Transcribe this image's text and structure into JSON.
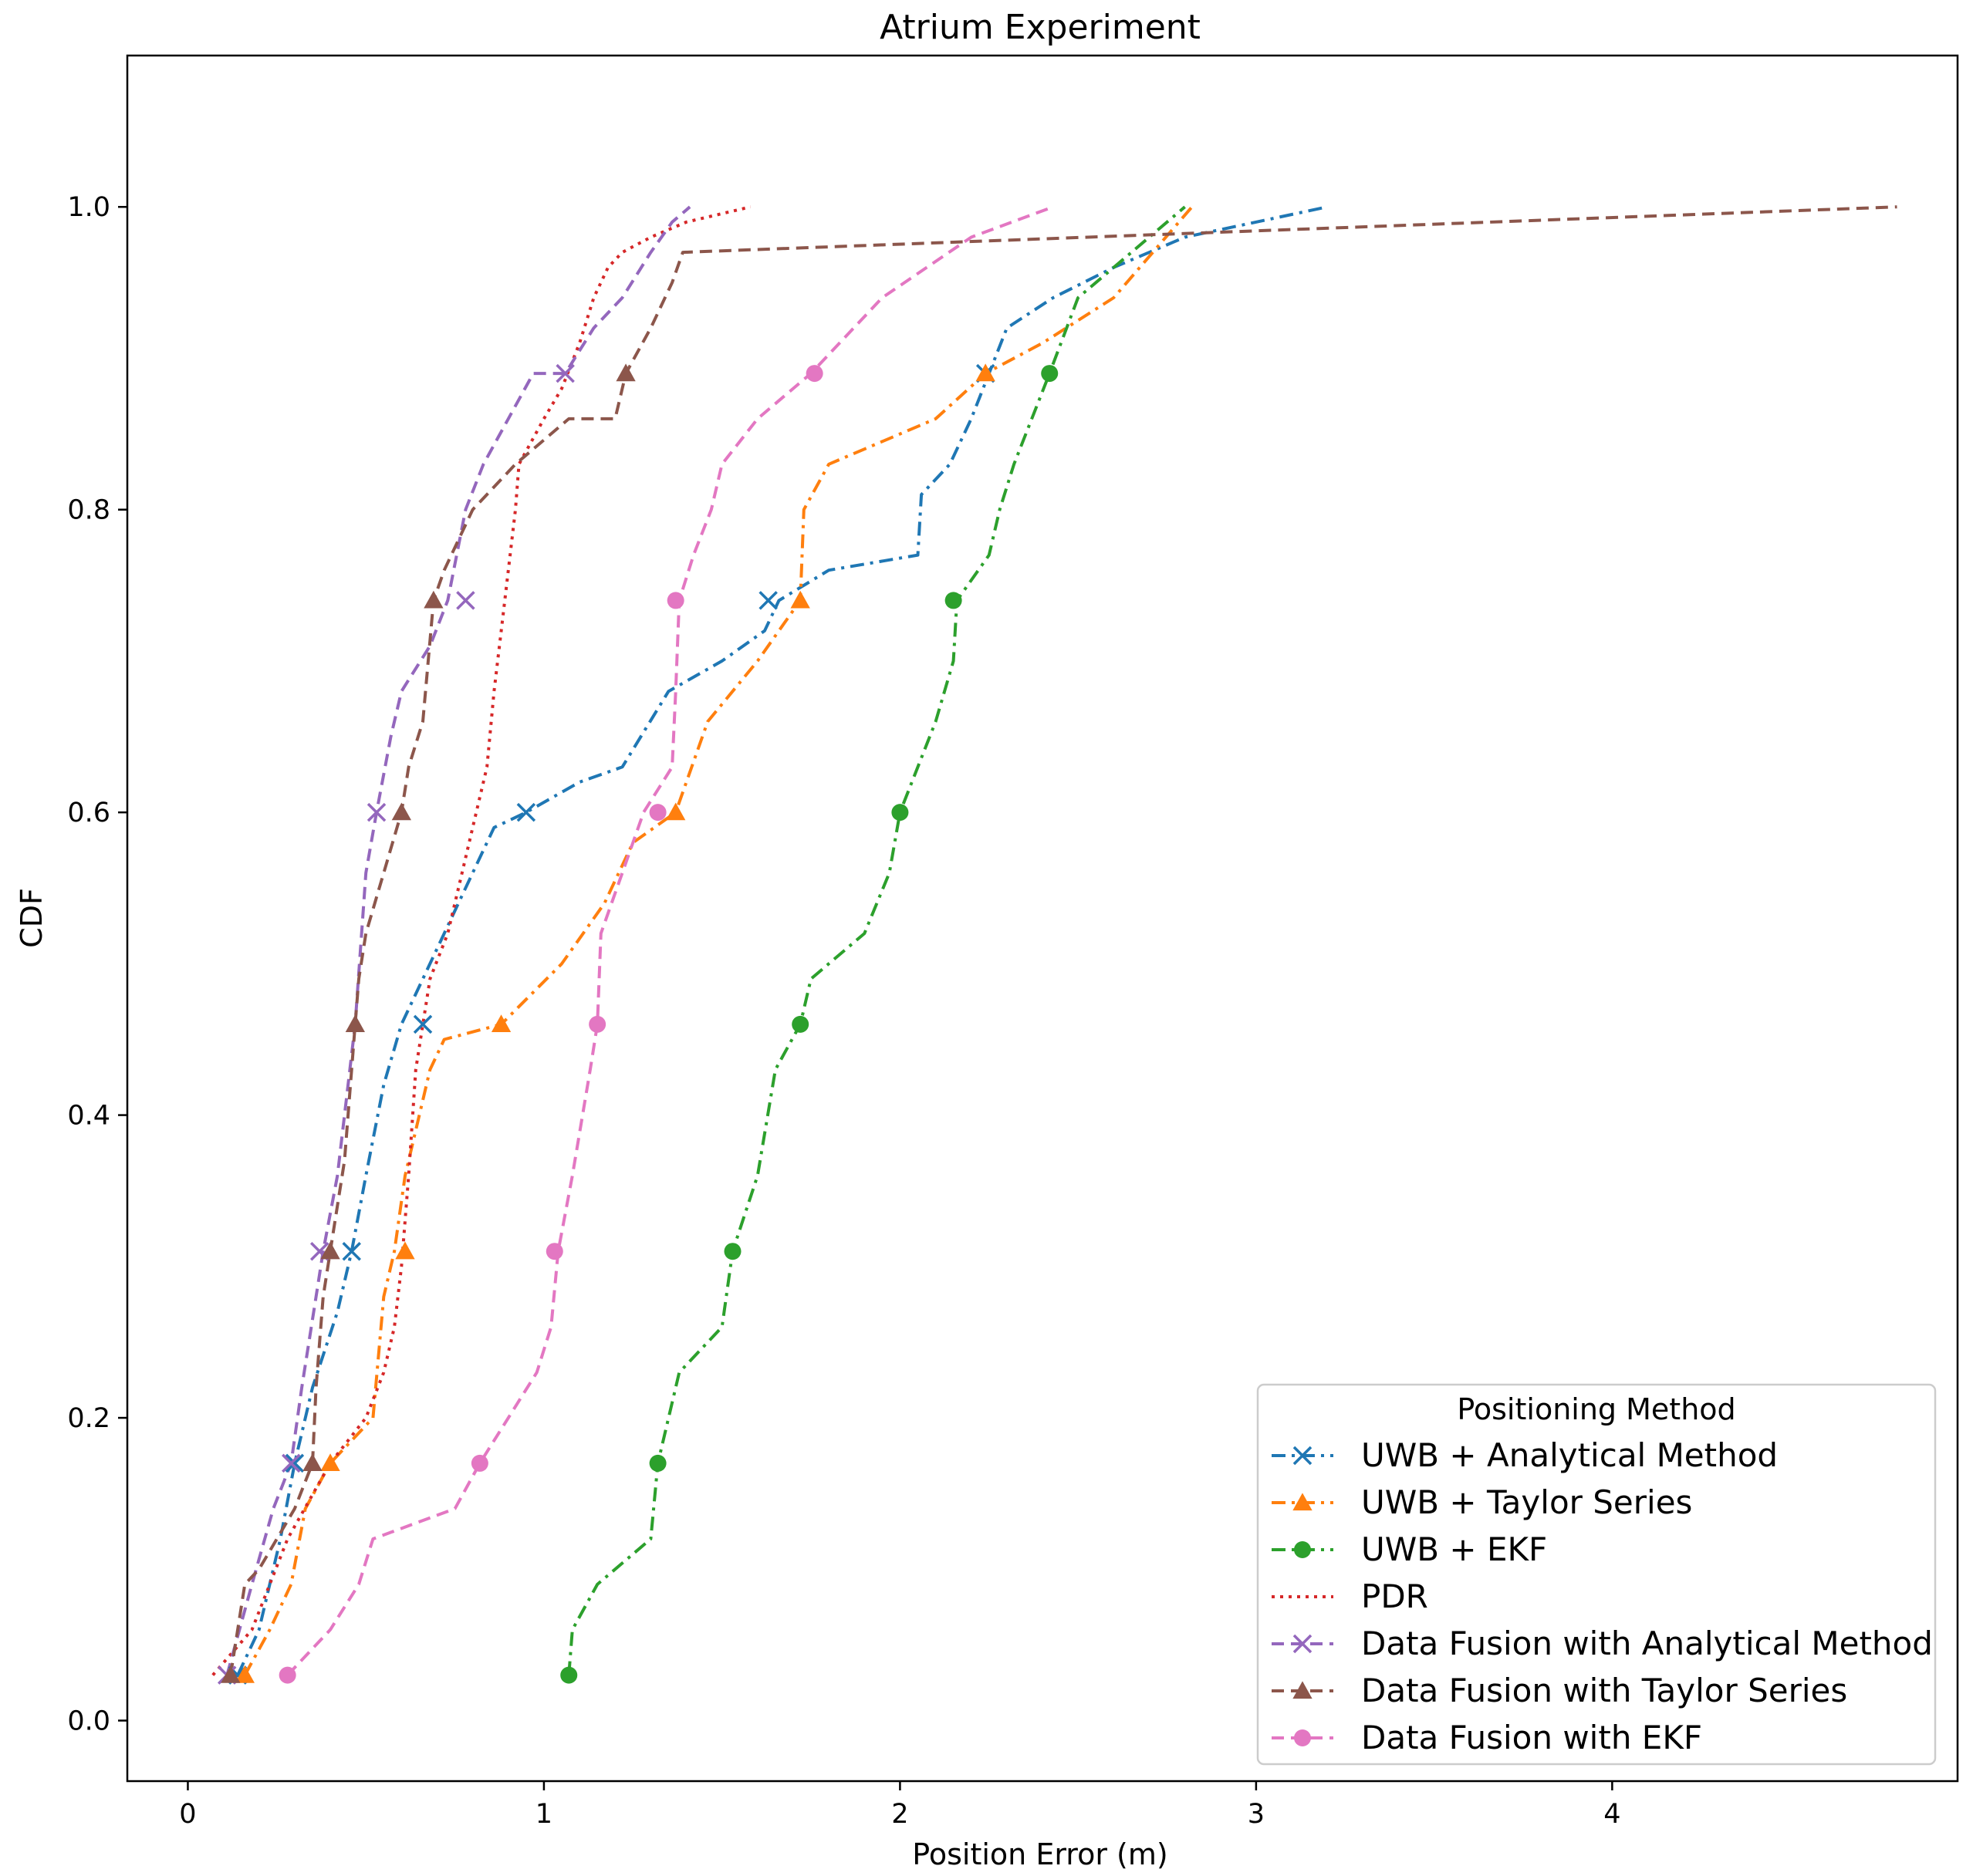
{
  "chart_data": {
    "type": "line",
    "title": "Atrium Experiment",
    "xlabel": "Position Error (m)",
    "ylabel": "CDF",
    "xlim": [
      -0.17,
      4.97
    ],
    "ylim": [
      -0.04,
      1.1
    ],
    "xticks": [
      0,
      1,
      2,
      3,
      4
    ],
    "xtick_labels": [
      "0",
      "1",
      "2",
      "3",
      "4"
    ],
    "yticks": [
      0.0,
      0.2,
      0.4,
      0.6,
      0.8,
      1.0
    ],
    "ytick_labels": [
      "0.0",
      "0.2",
      "0.4",
      "0.6",
      "0.8",
      "1.0"
    ],
    "grid": false,
    "legend": {
      "title": "Positioning Method",
      "location": "lower-right"
    },
    "series": [
      {
        "name": "UWB + Analytical Method",
        "color": "#1f77b4",
        "dash": "dashdot",
        "marker": "x",
        "x": [
          0.14,
          0.2,
          0.26,
          0.3,
          0.35,
          0.42,
          0.46,
          0.5,
          0.55,
          0.6,
          0.66,
          0.72,
          0.8,
          0.86,
          0.95,
          1.1,
          1.22,
          1.35,
          1.5,
          1.62,
          1.66,
          1.8,
          2.05,
          2.06,
          2.14,
          2.2,
          2.3,
          2.43,
          2.6,
          2.8,
          3.2
        ],
        "y": [
          0.03,
          0.06,
          0.12,
          0.17,
          0.22,
          0.27,
          0.31,
          0.36,
          0.42,
          0.46,
          0.49,
          0.52,
          0.56,
          0.59,
          0.6,
          0.62,
          0.63,
          0.68,
          0.7,
          0.72,
          0.74,
          0.76,
          0.77,
          0.81,
          0.83,
          0.86,
          0.92,
          0.94,
          0.96,
          0.98,
          1.0
        ],
        "marker_x": [
          0.14,
          0.3,
          0.46,
          0.66,
          0.95,
          1.63,
          2.24
        ],
        "marker_y": [
          0.03,
          0.17,
          0.31,
          0.46,
          0.6,
          0.74,
          0.89
        ]
      },
      {
        "name": "UWB + Taylor Series",
        "color": "#ff7f0e",
        "dash": "dashdot",
        "marker": "triangle",
        "x": [
          0.16,
          0.23,
          0.29,
          0.33,
          0.4,
          0.52,
          0.55,
          0.58,
          0.61,
          0.68,
          0.72,
          0.88,
          1.05,
          1.17,
          1.25,
          1.37,
          1.46,
          1.6,
          1.72,
          1.73,
          1.8,
          2.1,
          2.24,
          2.4,
          2.6,
          2.82
        ],
        "y": [
          0.03,
          0.06,
          0.09,
          0.14,
          0.17,
          0.2,
          0.28,
          0.31,
          0.36,
          0.43,
          0.45,
          0.46,
          0.5,
          0.54,
          0.58,
          0.6,
          0.66,
          0.7,
          0.74,
          0.8,
          0.83,
          0.86,
          0.89,
          0.91,
          0.94,
          1.0
        ],
        "marker_x": [
          0.16,
          0.4,
          0.61,
          0.88,
          1.37,
          1.72,
          2.24
        ],
        "marker_y": [
          0.03,
          0.17,
          0.31,
          0.46,
          0.6,
          0.74,
          0.89
        ]
      },
      {
        "name": "UWB + EKF",
        "color": "#2ca02c",
        "dash": "dashdot",
        "marker": "circle",
        "x": [
          1.07,
          1.08,
          1.15,
          1.3,
          1.32,
          1.38,
          1.5,
          1.53,
          1.6,
          1.65,
          1.72,
          1.75,
          1.9,
          1.97,
          2.0,
          2.1,
          2.15,
          2.16,
          2.25,
          2.28,
          2.32,
          2.42,
          2.5,
          2.65,
          2.8
        ],
        "y": [
          0.03,
          0.06,
          0.09,
          0.12,
          0.17,
          0.23,
          0.26,
          0.31,
          0.36,
          0.43,
          0.46,
          0.49,
          0.52,
          0.56,
          0.6,
          0.66,
          0.7,
          0.74,
          0.77,
          0.8,
          0.83,
          0.89,
          0.94,
          0.97,
          1.0
        ],
        "marker_x": [
          1.07,
          1.32,
          1.53,
          1.72,
          2.0,
          2.15,
          2.42
        ],
        "marker_y": [
          0.03,
          0.17,
          0.31,
          0.46,
          0.6,
          0.74,
          0.89
        ]
      },
      {
        "name": "PDR",
        "color": "#d62728",
        "dash": "dotted",
        "marker": "none",
        "x": [
          0.07,
          0.18,
          0.28,
          0.4,
          0.5,
          0.55,
          0.58,
          0.6,
          0.62,
          0.64,
          0.68,
          0.73,
          0.77,
          0.8,
          0.84,
          0.86,
          0.88,
          0.9,
          0.92,
          0.93,
          1.0,
          1.05,
          1.1,
          1.14,
          1.18,
          1.22,
          1.3,
          1.4,
          1.58
        ],
        "y": [
          0.03,
          0.06,
          0.12,
          0.17,
          0.2,
          0.23,
          0.26,
          0.3,
          0.36,
          0.43,
          0.49,
          0.52,
          0.56,
          0.59,
          0.63,
          0.68,
          0.72,
          0.76,
          0.8,
          0.83,
          0.86,
          0.88,
          0.91,
          0.94,
          0.96,
          0.97,
          0.98,
          0.99,
          1.0
        ],
        "marker_x": [],
        "marker_y": []
      },
      {
        "name": "Data Fusion with Analytical Method",
        "color": "#9467bd",
        "dash": "dashed",
        "marker": "x",
        "x": [
          0.11,
          0.18,
          0.24,
          0.29,
          0.32,
          0.36,
          0.38,
          0.42,
          0.47,
          0.5,
          0.53,
          0.57,
          0.6,
          0.68,
          0.73,
          0.78,
          0.83,
          0.9,
          0.97,
          1.06,
          1.14,
          1.22,
          1.3,
          1.36,
          1.41
        ],
        "y": [
          0.03,
          0.09,
          0.14,
          0.17,
          0.22,
          0.28,
          0.31,
          0.36,
          0.46,
          0.56,
          0.6,
          0.65,
          0.68,
          0.71,
          0.74,
          0.8,
          0.83,
          0.86,
          0.89,
          0.89,
          0.92,
          0.94,
          0.97,
          0.99,
          1.0
        ],
        "marker_x": [
          0.11,
          0.29,
          0.37,
          0.53,
          0.78,
          1.06
        ],
        "marker_y": [
          0.03,
          0.17,
          0.31,
          0.6,
          0.74,
          0.89
        ]
      },
      {
        "name": "Data Fusion with Taylor Series",
        "color": "#8c564b",
        "dash": "dashed",
        "marker": "triangle",
        "x": [
          0.12,
          0.16,
          0.2,
          0.3,
          0.35,
          0.36,
          0.38,
          0.4,
          0.44,
          0.47,
          0.48,
          0.5,
          0.55,
          0.6,
          0.62,
          0.66,
          0.69,
          0.72,
          0.8,
          0.92,
          1.07,
          1.2,
          1.23,
          1.3,
          1.36,
          1.39,
          4.8
        ],
        "y": [
          0.03,
          0.09,
          0.1,
          0.14,
          0.17,
          0.22,
          0.28,
          0.31,
          0.37,
          0.46,
          0.49,
          0.52,
          0.56,
          0.6,
          0.63,
          0.66,
          0.74,
          0.76,
          0.8,
          0.83,
          0.86,
          0.86,
          0.89,
          0.92,
          0.95,
          0.97,
          1.0
        ],
        "marker_x": [
          0.12,
          0.35,
          0.4,
          0.47,
          0.6,
          0.69,
          1.23
        ],
        "marker_y": [
          0.03,
          0.17,
          0.31,
          0.46,
          0.6,
          0.74,
          0.89
        ]
      },
      {
        "name": "Data Fusion with EKF",
        "color": "#e377c2",
        "dash": "dashed",
        "marker": "circle",
        "x": [
          0.28,
          0.4,
          0.48,
          0.52,
          0.75,
          0.82,
          0.98,
          1.02,
          1.04,
          1.08,
          1.13,
          1.15,
          1.16,
          1.22,
          1.28,
          1.36,
          1.37,
          1.38,
          1.42,
          1.47,
          1.5,
          1.6,
          1.75,
          1.95,
          2.2,
          2.43
        ],
        "y": [
          0.03,
          0.06,
          0.09,
          0.12,
          0.14,
          0.17,
          0.23,
          0.26,
          0.31,
          0.36,
          0.43,
          0.46,
          0.52,
          0.56,
          0.6,
          0.63,
          0.68,
          0.74,
          0.77,
          0.8,
          0.83,
          0.86,
          0.89,
          0.94,
          0.98,
          1.0
        ],
        "marker_x": [
          0.28,
          0.82,
          1.03,
          1.15,
          1.32,
          1.37,
          1.76
        ],
        "marker_y": [
          0.03,
          0.17,
          0.31,
          0.46,
          0.6,
          0.74,
          0.89
        ]
      }
    ]
  }
}
